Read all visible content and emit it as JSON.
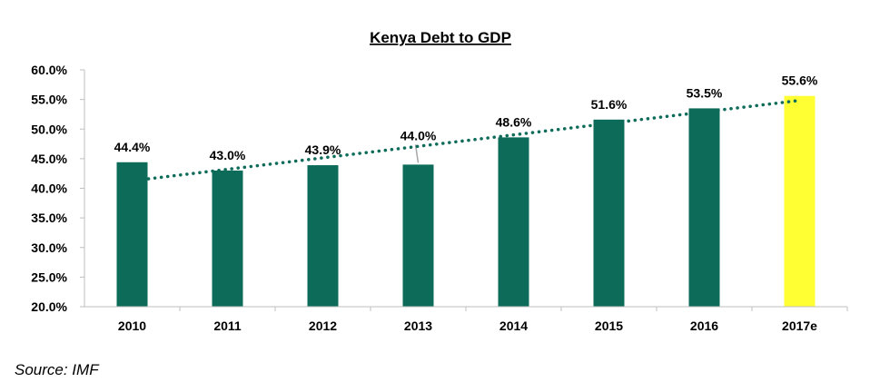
{
  "chart_data": {
    "type": "bar",
    "title": "Kenya Debt to GDP",
    "categories": [
      "2010",
      "2011",
      "2012",
      "2013",
      "2014",
      "2015",
      "2016",
      "2017e"
    ],
    "values": [
      44.4,
      43.0,
      43.9,
      44.0,
      48.6,
      51.6,
      53.5,
      55.6
    ],
    "value_labels": [
      "44.4%",
      "43.0%",
      "43.9%",
      "44.0%",
      "48.6%",
      "51.6%",
      "53.5%",
      "55.6%"
    ],
    "highlight_category": "2017e",
    "ylim": [
      20,
      60
    ],
    "yticks": [
      20,
      25,
      30,
      35,
      40,
      45,
      50,
      55,
      60
    ],
    "ytick_labels": [
      "20.0%",
      "25.0%",
      "30.0%",
      "35.0%",
      "40.0%",
      "45.0%",
      "50.0%",
      "55.0%",
      "60.0%"
    ],
    "trendline": {
      "style": "dotted",
      "start_value": 41.6,
      "end_value": 54.8
    },
    "grid": false,
    "colors": {
      "bar": "#0d6b5a",
      "highlight": "#ffff33",
      "trendline": "#0d6b5a",
      "axis": "#bfbfbf"
    }
  },
  "footer": {
    "source": "Source: IMF"
  }
}
